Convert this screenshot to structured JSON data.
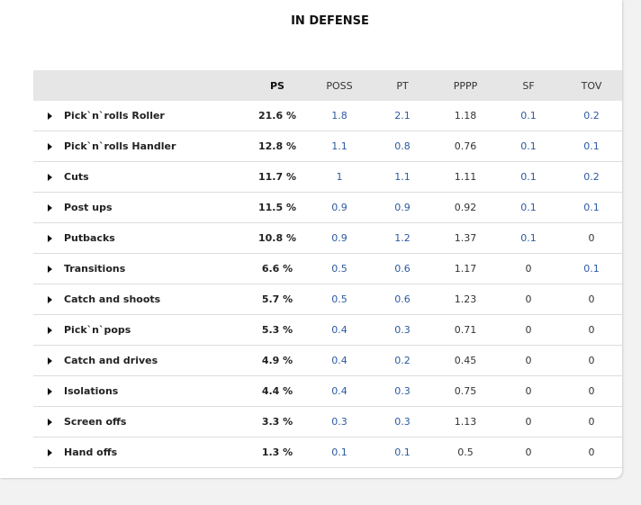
{
  "title": "IN DEFENSE",
  "headers": {
    "ps": "PS",
    "poss": "POSS",
    "pt": "PT",
    "pppp": "PPPP",
    "sf": "SF",
    "tov": "TOV"
  },
  "rows": [
    {
      "name": "Pick`n`rolls Roller",
      "ps": "21.6 %",
      "poss": "1.8",
      "pt": "2.1",
      "pppp": "1.18",
      "sf": "0.1",
      "tov": "0.2"
    },
    {
      "name": "Pick`n`rolls Handler",
      "ps": "12.8 %",
      "poss": "1.1",
      "pt": "0.8",
      "pppp": "0.76",
      "sf": "0.1",
      "tov": "0.1"
    },
    {
      "name": "Cuts",
      "ps": "11.7 %",
      "poss": "1",
      "pt": "1.1",
      "pppp": "1.11",
      "sf": "0.1",
      "tov": "0.2"
    },
    {
      "name": "Post ups",
      "ps": "11.5 %",
      "poss": "0.9",
      "pt": "0.9",
      "pppp": "0.92",
      "sf": "0.1",
      "tov": "0.1"
    },
    {
      "name": "Putbacks",
      "ps": "10.8 %",
      "poss": "0.9",
      "pt": "1.2",
      "pppp": "1.37",
      "sf": "0.1",
      "tov": "0"
    },
    {
      "name": "Transitions",
      "ps": "6.6 %",
      "poss": "0.5",
      "pt": "0.6",
      "pppp": "1.17",
      "sf": "0",
      "tov": "0.1"
    },
    {
      "name": "Catch and shoots",
      "ps": "5.7 %",
      "poss": "0.5",
      "pt": "0.6",
      "pppp": "1.23",
      "sf": "0",
      "tov": "0"
    },
    {
      "name": "Pick`n`pops",
      "ps": "5.3 %",
      "poss": "0.4",
      "pt": "0.3",
      "pppp": "0.71",
      "sf": "0",
      "tov": "0"
    },
    {
      "name": "Catch and drives",
      "ps": "4.9 %",
      "poss": "0.4",
      "pt": "0.2",
      "pppp": "0.45",
      "sf": "0",
      "tov": "0"
    },
    {
      "name": "Isolations",
      "ps": "4.4 %",
      "poss": "0.4",
      "pt": "0.3",
      "pppp": "0.75",
      "sf": "0",
      "tov": "0"
    },
    {
      "name": "Screen offs",
      "ps": "3.3 %",
      "poss": "0.3",
      "pt": "0.3",
      "pppp": "1.13",
      "sf": "0",
      "tov": "0"
    },
    {
      "name": "Hand offs",
      "ps": "1.3 %",
      "poss": "0.1",
      "pt": "0.1",
      "pppp": "0.5",
      "sf": "0",
      "tov": "0"
    }
  ],
  "colors": {
    "link": "#2c5aa0",
    "header_bg": "#e6e6e6"
  },
  "icons": {
    "expand": "triangle-right-icon"
  }
}
